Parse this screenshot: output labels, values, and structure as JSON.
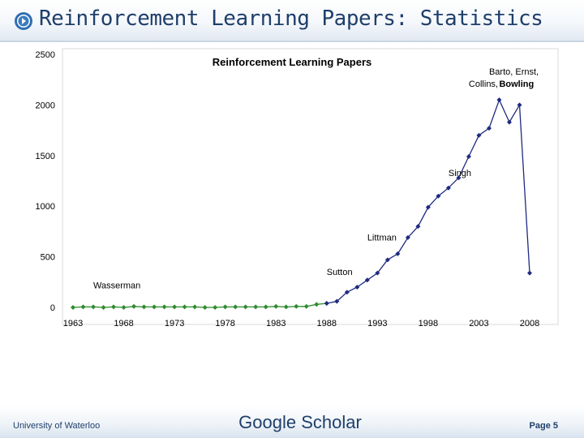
{
  "slide": {
    "title": "Reinforcement Learning Papers: Statistics",
    "footer_left": "University of Waterloo",
    "footer_center": "Google Scholar",
    "footer_right": "Page 5"
  },
  "colors": {
    "title": "#1f3f6b",
    "early_series": "#2e8b2e",
    "recent_series": "#1f2a80"
  },
  "chart_data": {
    "type": "line",
    "title": "Reinforcement Learning Papers",
    "xlabel": "",
    "ylabel": "",
    "xlim": [
      1963,
      2008
    ],
    "ylim": [
      0,
      2500
    ],
    "x_ticks": [
      "1963",
      "1968",
      "1973",
      "1978",
      "1983",
      "1988",
      "1993",
      "1998",
      "2003",
      "2008"
    ],
    "y_ticks": [
      "2500",
      "2000",
      "1500",
      "1000",
      "500",
      "0"
    ],
    "grid": false,
    "legend": "none",
    "series": [
      {
        "color": "#2e8b2e",
        "x": [
          1963,
          1964,
          1965,
          1966,
          1967,
          1968,
          1969,
          1970,
          1971,
          1972,
          1973,
          1974,
          1975,
          1976,
          1977,
          1978,
          1979,
          1980,
          1981,
          1982,
          1983,
          1984,
          1985,
          1986,
          1987,
          1988
        ],
        "y": [
          0,
          5,
          5,
          0,
          5,
          0,
          10,
          5,
          5,
          5,
          5,
          5,
          5,
          0,
          0,
          5,
          5,
          5,
          5,
          5,
          10,
          5,
          10,
          10,
          30,
          40
        ]
      },
      {
        "color": "#1f2a80",
        "x": [
          1988,
          1989,
          1990,
          1991,
          1992,
          1993,
          1994,
          1995,
          1996,
          1997,
          1998,
          1999,
          2000,
          2001,
          2002,
          2003,
          2004,
          2005,
          2006,
          2007,
          2008
        ],
        "y": [
          40,
          60,
          150,
          200,
          270,
          340,
          470,
          530,
          690,
          800,
          990,
          1100,
          1180,
          1280,
          1490,
          1700,
          1770,
          2050,
          1830,
          2000,
          340
        ]
      }
    ],
    "annotations": [
      {
        "text": "Wasserman",
        "x": 1965,
        "y": 190
      },
      {
        "text": "Sutton",
        "x": 1988,
        "y": 320
      },
      {
        "text": "Littman",
        "x": 1992,
        "y": 660
      },
      {
        "text": "Singh",
        "x": 2000,
        "y": 1300
      },
      {
        "text": "Barto, Ernst,",
        "x": 2004,
        "y": 2300
      },
      {
        "text": "Collins,",
        "x": 2002,
        "y": 2180
      },
      {
        "text": "Bowling",
        "x": 2005,
        "y": 2180
      }
    ]
  }
}
